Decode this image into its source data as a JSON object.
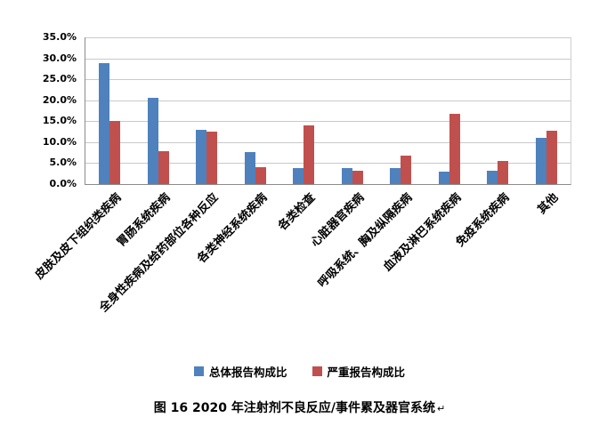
{
  "chart_data": {
    "type": "bar",
    "title": "",
    "categories": [
      "皮肤及皮下组织类疾病",
      "胃肠系统疾病",
      "全身性疾病及给药部位各种反应",
      "各类神经系统疾病",
      "各类检查",
      "心脏器官疾病",
      "呼吸系统、胸及纵隔疾病",
      "血液及淋巴系统疾病",
      "免疫系统疾病",
      "其他"
    ],
    "series": [
      {
        "name": "总体报告构成比",
        "color": "#4F81BD",
        "values": [
          28.8,
          20.6,
          13.0,
          7.6,
          3.8,
          3.8,
          3.8,
          3.0,
          3.2,
          11.0
        ]
      },
      {
        "name": "严重报告构成比",
        "color": "#C0504D",
        "values": [
          15.0,
          7.9,
          12.5,
          4.0,
          14.0,
          3.2,
          6.8,
          16.8,
          5.5,
          12.7
        ]
      }
    ],
    "ylim": [
      0,
      35
    ],
    "y_ticks": [
      "0.0%",
      "5.0%",
      "10.0%",
      "15.0%",
      "20.0%",
      "25.0%",
      "30.0%",
      "35.0%"
    ],
    "grid": true,
    "legend_position": "bottom",
    "xlabel": "",
    "ylabel": ""
  },
  "caption": {
    "text": "图 16  2020 年注射剂不良反应/事件累及器官系统",
    "mark": "↵"
  }
}
